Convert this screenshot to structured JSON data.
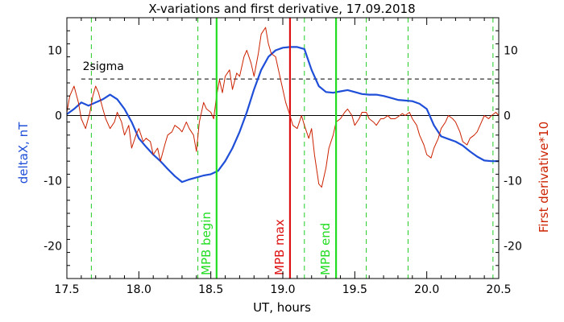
{
  "chart_data": {
    "type": "line",
    "title": "X-variations and first derivative, 17.09.2018",
    "xlabel": "UT, hours",
    "ylabel_left": "deltaX, nT",
    "ylabel_right": "First derivative*10",
    "xlim": [
      17.5,
      20.5
    ],
    "ylim": [
      -25,
      15
    ],
    "x_ticks": [
      17.5,
      18.0,
      18.5,
      19.0,
      19.5,
      20.0,
      20.5
    ],
    "x_tick_labels": [
      "17.5",
      "18.0",
      "18.5",
      "19.0",
      "19.5",
      "20.0",
      "20.5"
    ],
    "y_ticks": [
      -20,
      -10,
      0,
      10
    ],
    "y_tick_labels": [
      "-20",
      "-10",
      "0",
      "10"
    ],
    "grid": false,
    "colors": {
      "deltaX": "#1f4fd8",
      "derivative": "#cc2200",
      "mpb": "#22dd22",
      "mpb_max": "#dd1111",
      "dashed_green": "#22cc22",
      "axis": "#000000"
    },
    "threshold": {
      "label": "2sigma",
      "value": 5.6
    },
    "zero_line": 0,
    "vertical_markers": [
      {
        "x": 18.54,
        "label": "MPB begin",
        "kind": "mpb"
      },
      {
        "x": 19.05,
        "label": "MPB max",
        "kind": "mpb_max"
      },
      {
        "x": 19.37,
        "label": "MPB end",
        "kind": "mpb"
      }
    ],
    "dashed_markers": [
      17.67,
      18.41,
      19.15,
      19.58,
      19.87,
      20.46
    ],
    "series": [
      {
        "key": "deltaX",
        "axis": "left",
        "x": [
          17.5,
          17.55,
          17.6,
          17.65,
          17.7,
          17.75,
          17.8,
          17.85,
          17.9,
          17.95,
          18.0,
          18.05,
          18.1,
          18.15,
          18.2,
          18.25,
          18.3,
          18.35,
          18.4,
          18.45,
          18.5,
          18.55,
          18.6,
          18.65,
          18.7,
          18.75,
          18.8,
          18.85,
          18.9,
          18.95,
          19.0,
          19.05,
          19.1,
          19.15,
          19.2,
          19.25,
          19.3,
          19.35,
          19.4,
          19.45,
          19.5,
          19.55,
          19.6,
          19.65,
          19.7,
          19.75,
          19.8,
          19.85,
          19.9,
          19.95,
          20.0,
          20.05,
          20.1,
          20.15,
          20.2,
          20.25,
          20.3,
          20.35,
          20.4,
          20.45,
          20.5
        ],
        "y": [
          0.2,
          1.0,
          2.0,
          1.5,
          2.0,
          2.5,
          3.2,
          2.5,
          1.0,
          -1.0,
          -3.5,
          -4.8,
          -6.0,
          -7.0,
          -8.2,
          -9.3,
          -10.2,
          -9.8,
          -9.5,
          -9.2,
          -9.0,
          -8.5,
          -7.0,
          -5.0,
          -2.5,
          0.5,
          4.0,
          7.0,
          9.0,
          10.0,
          10.4,
          10.5,
          10.5,
          10.2,
          7.0,
          4.5,
          3.6,
          3.5,
          3.7,
          3.9,
          3.6,
          3.3,
          3.2,
          3.2,
          3.0,
          2.7,
          2.4,
          2.3,
          2.2,
          1.8,
          1.0,
          -1.5,
          -3.2,
          -3.6,
          -4.0,
          -4.6,
          -5.5,
          -6.3,
          -6.9,
          -7.0,
          -7.0
        ]
      },
      {
        "key": "derivative",
        "axis": "right",
        "x": [
          17.5,
          17.52,
          17.55,
          17.58,
          17.6,
          17.63,
          17.66,
          17.68,
          17.7,
          17.72,
          17.75,
          17.77,
          17.8,
          17.83,
          17.85,
          17.88,
          17.9,
          17.93,
          17.95,
          17.98,
          18.0,
          18.03,
          18.05,
          18.08,
          18.1,
          18.13,
          18.15,
          18.18,
          18.2,
          18.23,
          18.25,
          18.28,
          18.3,
          18.33,
          18.35,
          18.38,
          18.4,
          18.42,
          18.45,
          18.47,
          18.5,
          18.52,
          18.54,
          18.56,
          18.58,
          18.6,
          18.63,
          18.65,
          18.68,
          18.7,
          18.73,
          18.75,
          18.78,
          18.8,
          18.83,
          18.85,
          18.88,
          18.9,
          18.92,
          18.95,
          18.97,
          19.0,
          19.02,
          19.05,
          19.07,
          19.1,
          19.13,
          19.15,
          19.18,
          19.2,
          19.22,
          19.25,
          19.27,
          19.3,
          19.32,
          19.35,
          19.37,
          19.4,
          19.43,
          19.45,
          19.48,
          19.5,
          19.53,
          19.55,
          19.58,
          19.6,
          19.63,
          19.65,
          19.68,
          19.7,
          19.73,
          19.75,
          19.78,
          19.8,
          19.83,
          19.85,
          19.88,
          19.9,
          19.93,
          19.95,
          19.98,
          20.0,
          20.03,
          20.05,
          20.08,
          20.1,
          20.13,
          20.15,
          20.18,
          20.2,
          20.23,
          20.25,
          20.28,
          20.3,
          20.33,
          20.35,
          20.38,
          20.4,
          20.43,
          20.45,
          20.48,
          20.5
        ],
        "y": [
          0.5,
          3.0,
          4.5,
          2.0,
          -0.5,
          -2.0,
          0.5,
          3.0,
          4.5,
          3.5,
          1.0,
          -0.5,
          -2.0,
          -1.0,
          0.5,
          -1.0,
          -3.0,
          -1.5,
          -5.0,
          -3.0,
          -2.0,
          -4.0,
          -3.5,
          -4.0,
          -6.0,
          -5.0,
          -7.0,
          -4.5,
          -3.0,
          -2.5,
          -1.5,
          -2.0,
          -2.5,
          -1.0,
          -2.0,
          -3.0,
          -5.5,
          -1.0,
          2.0,
          1.0,
          0.5,
          -0.5,
          3.0,
          5.5,
          3.5,
          6.0,
          7.0,
          4.0,
          6.5,
          6.0,
          9.0,
          10.0,
          8.0,
          6.0,
          9.5,
          12.5,
          13.5,
          11.0,
          9.5,
          9.0,
          7.0,
          4.0,
          2.0,
          0.0,
          -1.5,
          -2.0,
          0.0,
          -1.5,
          -3.5,
          -2.0,
          -6.0,
          -10.5,
          -11.0,
          -8.0,
          -5.0,
          -3.0,
          -1.0,
          -0.5,
          0.5,
          1.0,
          0.0,
          -1.5,
          -0.5,
          0.5,
          0.5,
          -0.5,
          -1.0,
          -1.5,
          -0.5,
          -0.5,
          0.0,
          -0.5,
          -0.5,
          -0.2,
          0.3,
          0.0,
          0.5,
          -0.5,
          -1.5,
          -3.0,
          -4.5,
          -6.0,
          -6.5,
          -5.0,
          -3.5,
          -2.0,
          -1.0,
          0.0,
          -0.5,
          -1.0,
          -2.5,
          -4.0,
          -4.5,
          -3.5,
          -3.0,
          -2.5,
          -1.0,
          0.0,
          -0.5,
          0.0,
          0.5,
          0.0
        ]
      }
    ]
  }
}
